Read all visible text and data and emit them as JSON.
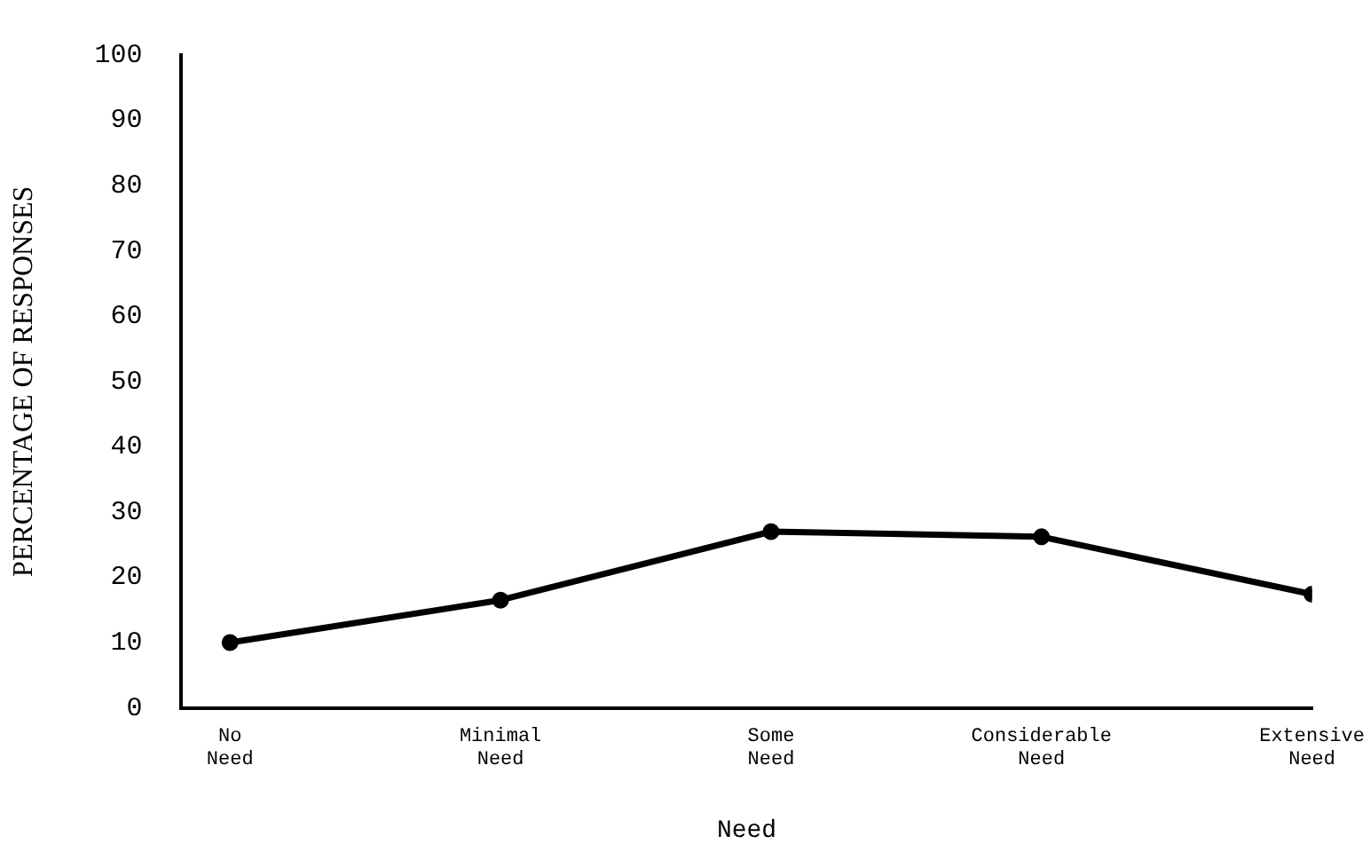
{
  "chart_data": {
    "type": "line",
    "xlabel": "Need",
    "ylabel": "PERCENTAGE OF RESPONSES",
    "categories": [
      "No Need",
      "Minimal Need",
      "Some Need",
      "Considerable Need",
      "Extensive Need"
    ],
    "series": [
      {
        "color": "#000000",
        "values": [
          10,
          16.5,
          27,
          26.2,
          17.4
        ]
      }
    ],
    "ylim": [
      0,
      100
    ],
    "yticks": [
      0,
      10,
      20,
      30,
      40,
      50,
      60,
      70,
      80,
      90,
      100
    ],
    "grid": false,
    "legend": false,
    "marker": "circle",
    "line_style": "solid"
  }
}
